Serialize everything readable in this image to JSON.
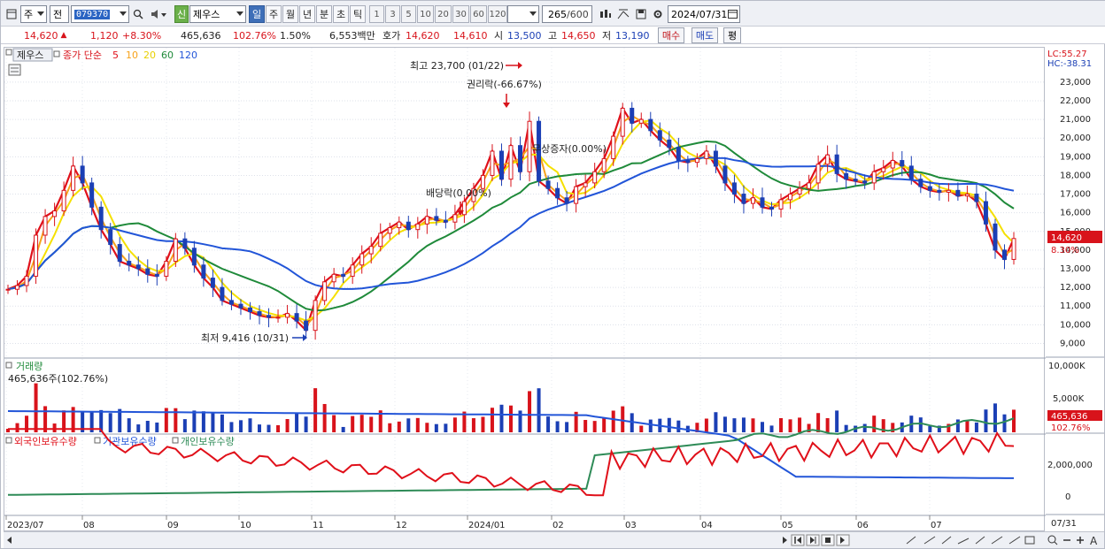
{
  "toolbar": {
    "period_label": "주",
    "prev_label": "전",
    "stock_code": "079370",
    "tag_new": "신",
    "stock_name": "제우스",
    "periods": [
      "일",
      "주",
      "월",
      "년",
      "분",
      "초",
      "틱"
    ],
    "intervals": [
      "1",
      "3",
      "5",
      "10",
      "20",
      "30",
      "60",
      "120"
    ],
    "count": "265",
    "count_max": "/600",
    "date": "2024/07/31"
  },
  "quote": {
    "price": "14,620",
    "change": "1,120",
    "change_pct": "+8.30%",
    "volume": "465,636",
    "volume_ratio": "102.76%",
    "turnover": "1.50%",
    "amount": "6,553백만",
    "ask_label": "호가",
    "ask": "14,620",
    "bid": "14,610",
    "open_label": "시",
    "open": "13,500",
    "high_label": "고",
    "high": "14,650",
    "low_label": "저",
    "low": "13,190",
    "buy_label": "매수",
    "sell_label": "매도",
    "avg_label": "평"
  },
  "chart": {
    "legend_name": "제우스",
    "legend_ma": "종가 단순",
    "ma_periods": [
      "5",
      "10",
      "20",
      "60",
      "120"
    ],
    "ma_colors": [
      "#e0101a",
      "#f7a21b",
      "#f5e000",
      "#1f8a3a",
      "#2255d8"
    ],
    "lc": "LC:55.27",
    "hc": "HC:-38.31",
    "price_ticks": [
      "23,000",
      "22,000",
      "21,000",
      "20,000",
      "19,000",
      "18,000",
      "17,000",
      "16,000",
      "15,000",
      "14,000",
      "13,000",
      "12,000",
      "11,000",
      "10,000",
      "9,000"
    ],
    "last_price_tag": "14,620",
    "last_pct_tag": "8.30%",
    "annot_high": "최고 23,700 (01/22)",
    "annot_low": "최저 9,416 (10/31)",
    "annot_rights": "권리락(-66.67%)",
    "annot_bonus": "무상증자(0.00%)",
    "annot_div": "배당락(0.00%)",
    "volume_title": "거래량",
    "volume_info": "465,636주(102.76%)",
    "volume_ticks": [
      "10,000K",
      "5,000K"
    ],
    "volume_tag": "465,636",
    "volume_pct_tag": "102.76%",
    "holders_legend": [
      "외국인보유수량",
      "기관보유수량",
      "개인보유수량"
    ],
    "holders_colors": [
      "#e0101a",
      "#2255d8",
      "#2e8b57"
    ],
    "holders_ticks": [
      "2,000,000",
      "0"
    ],
    "x_labels": [
      "2023/07",
      "08",
      "09",
      "10",
      "11",
      "12",
      "2024/01",
      "02",
      "03",
      "04",
      "05",
      "06",
      "07"
    ],
    "x_last": "07/31"
  },
  "chart_data": {
    "type": "line",
    "title": "제우스",
    "ylim": [
      8500,
      23800
    ],
    "series": [
      {
        "name": "종가",
        "values": [
          11900,
          12100,
          12600,
          14800,
          15800,
          16100,
          17200,
          18500,
          17600,
          16300,
          15100,
          14300,
          13400,
          13200,
          13000,
          12700,
          12600,
          13400,
          14600,
          14100,
          13200,
          12500,
          12000,
          11300,
          11100,
          10900,
          10700,
          10500,
          10400,
          10400,
          10600,
          10200,
          9700,
          11300,
          12300,
          12700,
          12600,
          13200,
          13800,
          14200,
          14900,
          15200,
          15500,
          15100,
          15400,
          15800,
          15600,
          15500,
          15900,
          16600,
          17300,
          18000,
          19300,
          17800,
          19600,
          18200,
          20900,
          17700,
          17300,
          16800,
          16500,
          17400,
          17600,
          18200,
          18900,
          20100,
          21600,
          20800,
          21000,
          20400,
          19900,
          19500,
          18800,
          18700,
          18900,
          19300,
          18500,
          17600,
          17000,
          16500,
          16800,
          16300,
          16200,
          16700,
          17000,
          17300,
          17600,
          18600,
          19100,
          18100,
          17800,
          17700,
          17600,
          18200,
          18400,
          18800,
          18500,
          17800,
          17400,
          17200,
          17100,
          17200,
          16900,
          17000,
          16600,
          15400,
          14000,
          13500,
          14620
        ]
      }
    ]
  }
}
